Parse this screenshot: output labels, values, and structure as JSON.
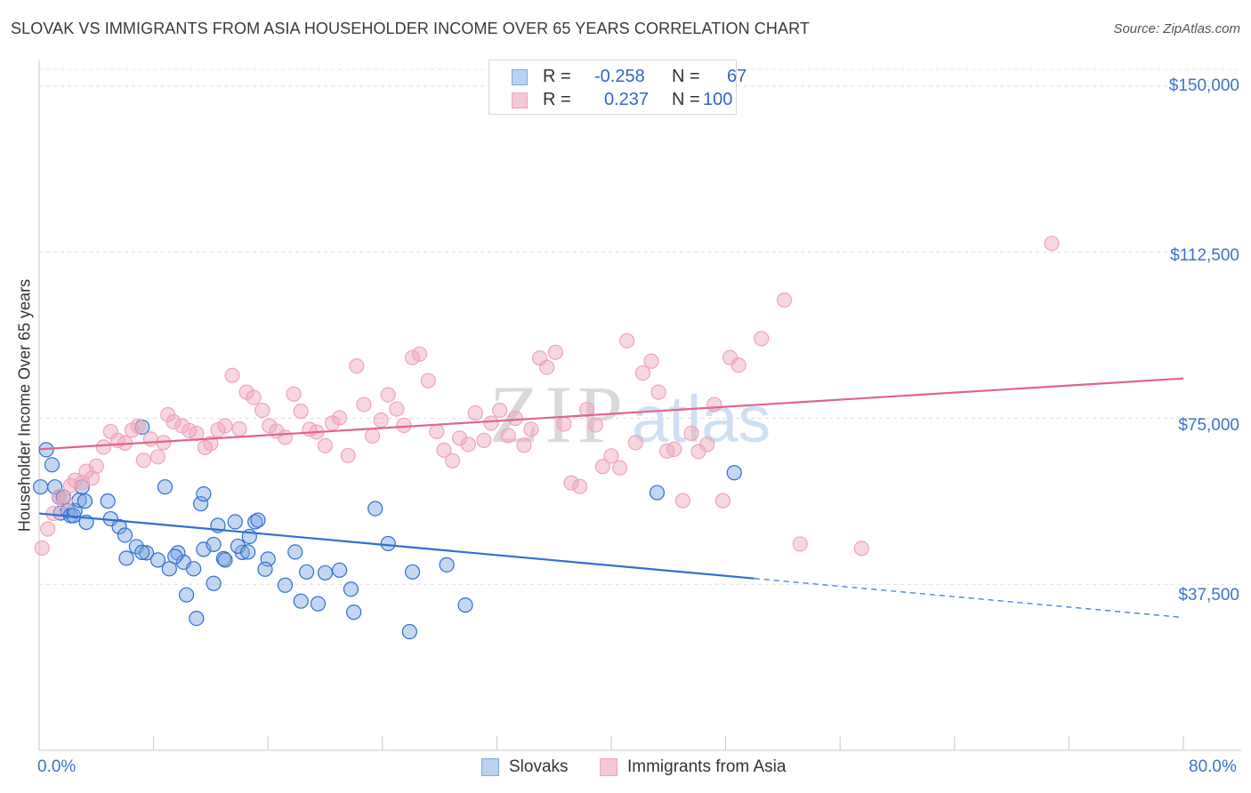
{
  "title": "SLOVAK VS IMMIGRANTS FROM ASIA HOUSEHOLDER INCOME OVER 65 YEARS CORRELATION CHART",
  "source": "Source: ZipAtlas.com",
  "watermark": {
    "zip": "ZIP",
    "atlas": "atlas"
  },
  "legend": {
    "slovaks": {
      "r_label": "R =",
      "r_value": "-0.258",
      "n_label": "N =",
      "n_value": "67"
    },
    "asia": {
      "r_label": "R =",
      "r_value": "0.237",
      "n_label": "N =",
      "n_value": "100"
    }
  },
  "bottom_legend": {
    "slovaks": "Slovaks",
    "asia": "Immigrants from Asia"
  },
  "chart_data": {
    "type": "scatter",
    "title": "SLOVAK VS IMMIGRANTS FROM ASIA HOUSEHOLDER INCOME OVER 65 YEARS CORRELATION CHART",
    "xlabel": "",
    "ylabel": "Householder Income Over 65 years",
    "xlim": [
      0,
      80
    ],
    "ylim": [
      0,
      157000
    ],
    "x_tick_labels": [
      "0.0%",
      "80.0%"
    ],
    "y_ticks": [
      {
        "value": 37500,
        "label": "$37,500"
      },
      {
        "value": 75000,
        "label": "$75,000"
      },
      {
        "value": 112500,
        "label": "$112,500"
      },
      {
        "value": 150000,
        "label": "$150,000"
      }
    ],
    "grid": "horizontal dashed",
    "colors": {
      "slovaks": "#7ba7e0",
      "slovaks_line": "#2f6fd1",
      "asia": "#f0a3bb",
      "asia_line": "#e0648d"
    },
    "series": [
      {
        "name": "Slovaks",
        "x": [
          0.1,
          0.5,
          0.9,
          1.1,
          1.4,
          1.5,
          1.7,
          2.0,
          2.2,
          2.4,
          2.5,
          2.8,
          3.0,
          3.2,
          3.3,
          4.8,
          5.0,
          5.6,
          6.0,
          6.8,
          7.5,
          9.7,
          10.1,
          12.5,
          11.5,
          7.2,
          6.1,
          8.3,
          9.5,
          9.1,
          10.8,
          11.3,
          12.2,
          12.9,
          13.7,
          14.2,
          15.1,
          16.0,
          17.2,
          18.3,
          7.2,
          8.8,
          11.5,
          13.9,
          15.3,
          14.7,
          10.3,
          11.0,
          12.2,
          13.0,
          14.6,
          15.8,
          17.9,
          18.7,
          19.5,
          20.0,
          21.0,
          21.8,
          22.0,
          23.5,
          24.4,
          25.9,
          26.1,
          28.5,
          29.8,
          43.2,
          48.6
        ],
        "y": [
          59500,
          67900,
          64500,
          59500,
          57200,
          53600,
          57200,
          54100,
          53000,
          53000,
          54100,
          56500,
          59500,
          56300,
          51500,
          56300,
          52300,
          50500,
          48600,
          46000,
          44600,
          44600,
          42500,
          50800,
          45400,
          44700,
          43400,
          43000,
          43800,
          41000,
          41000,
          55700,
          46500,
          43300,
          51600,
          44700,
          51600,
          43200,
          37300,
          33700,
          73000,
          59500,
          57900,
          46100,
          52000,
          48300,
          35100,
          29800,
          37700,
          43000,
          44800,
          40900,
          44800,
          40300,
          33100,
          40100,
          40700,
          36400,
          31200,
          54600,
          46700,
          26800,
          40300,
          41900,
          32800,
          58200,
          62700
        ]
      },
      {
        "name": "Immigrants from Asia",
        "x": [
          0.2,
          0.6,
          1.0,
          1.4,
          1.8,
          2.2,
          2.5,
          3.0,
          3.3,
          3.7,
          4.0,
          4.5,
          5.0,
          5.5,
          6.0,
          6.5,
          6.9,
          7.3,
          7.8,
          8.3,
          8.7,
          9.0,
          9.4,
          10.0,
          10.5,
          11.0,
          11.6,
          12.0,
          12.5,
          13.0,
          13.5,
          14.0,
          14.5,
          15.0,
          15.6,
          16.1,
          16.6,
          17.2,
          17.8,
          18.3,
          18.9,
          19.4,
          20.0,
          20.5,
          21.0,
          21.6,
          22.2,
          22.7,
          23.3,
          23.9,
          24.4,
          25.0,
          25.5,
          26.1,
          26.6,
          27.2,
          27.8,
          28.3,
          28.9,
          29.4,
          30.0,
          30.5,
          31.1,
          31.6,
          32.2,
          32.8,
          33.3,
          33.9,
          34.4,
          35.0,
          35.5,
          36.1,
          36.7,
          37.2,
          37.8,
          38.3,
          38.9,
          39.4,
          40.0,
          40.6,
          41.1,
          41.7,
          42.2,
          42.8,
          43.3,
          43.9,
          44.4,
          45.0,
          45.6,
          46.1,
          46.7,
          47.2,
          47.8,
          48.3,
          48.9,
          50.5,
          52.1,
          53.2,
          57.5,
          70.8
        ],
        "y": [
          45700,
          50000,
          53500,
          57300,
          56300,
          59800,
          61000,
          60500,
          63000,
          61500,
          64200,
          68500,
          72000,
          70000,
          69400,
          72300,
          73200,
          65500,
          70300,
          66300,
          69500,
          75800,
          74200,
          73300,
          72200,
          71600,
          68400,
          69300,
          72400,
          73300,
          84700,
          72600,
          80900,
          79700,
          76800,
          73300,
          72100,
          70700,
          80500,
          76600,
          72500,
          71900,
          68800,
          73900,
          75100,
          66600,
          86800,
          78100,
          71000,
          74600,
          80300,
          77100,
          73400,
          88700,
          89500,
          83500,
          72000,
          67800,
          65400,
          70500,
          69100,
          76200,
          70000,
          73900,
          76800,
          71100,
          75000,
          68900,
          72500,
          88600,
          86500,
          89900,
          73700,
          60400,
          59600,
          77000,
          73500,
          64100,
          66500,
          63800,
          92500,
          69500,
          85200,
          87900,
          80900,
          67600,
          68000,
          56400,
          71600,
          67500,
          69100,
          78100,
          56400,
          88700,
          87000,
          93000,
          101700,
          46600,
          45600,
          114500
        ]
      }
    ],
    "trendlines": [
      {
        "name": "Slovaks",
        "x_start": 0,
        "x_end": 80,
        "y_start": 53500,
        "y_end": 30000,
        "solid_until_x": 50
      },
      {
        "name": "Immigrants from Asia",
        "x_start": 0,
        "x_end": 80,
        "y_start": 68000,
        "y_end": 84000
      }
    ]
  }
}
